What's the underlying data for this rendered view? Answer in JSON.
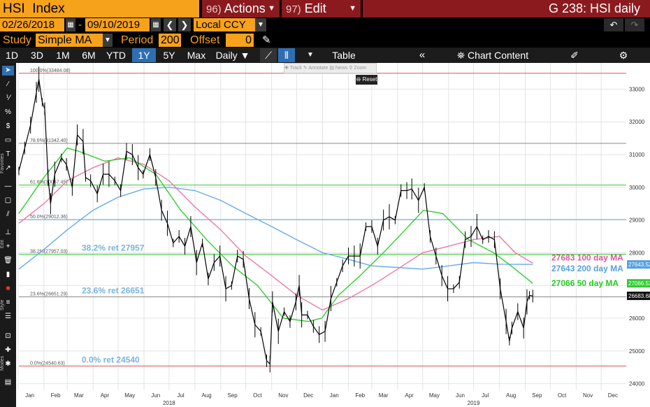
{
  "header": {
    "ticker": "HSI",
    "ticker_type": "Index",
    "actions_num": "96)",
    "actions_label": "Actions",
    "edit_num": "97)",
    "edit_label": "Edit",
    "graph_title": "G 238: HSI daily"
  },
  "dates": {
    "start": "02/26/2018",
    "sep": "-",
    "end": "09/10/2019",
    "currency": "Local CCY"
  },
  "study": {
    "label": "Study",
    "value": "Simple MA",
    "period_label": "Period",
    "period_value": "200",
    "offset_label": "Offset",
    "offset_value": "0"
  },
  "toolbar": {
    "periods": [
      "1D",
      "3D",
      "1M",
      "6M",
      "YTD",
      "1Y",
      "5Y",
      "Max"
    ],
    "active_period": "1Y",
    "frequency": "Daily",
    "table_label": "Table",
    "chart_content_label": "Chart Content"
  },
  "strip": {
    "favorites": "Favorites",
    "edit": "Edit",
    "style": "Style",
    "modes": "Modes"
  },
  "popups": {
    "track": "Track",
    "annotate": "Annotate",
    "news": "News",
    "zoom": "Zoom",
    "reset": "Reset"
  },
  "chart_data": {
    "type": "line",
    "xlim": [
      "2018-01-02",
      "2019-12-31"
    ],
    "ylim": [
      23800,
      33800
    ],
    "y_ticks": [
      24000,
      25000,
      26000,
      27000,
      28000,
      29000,
      30000,
      31000,
      32000,
      33000
    ],
    "x_month_labels": [
      "Jan",
      "Feb",
      "Mar",
      "Apr",
      "May",
      "Jun",
      "Jul",
      "Aug",
      "Sep",
      "Oct",
      "Nov",
      "Dec",
      "Jan",
      "Feb",
      "Mar",
      "Apr",
      "May",
      "Jun",
      "Jul",
      "Aug",
      "Sep",
      "Oct",
      "Nov",
      "Dec"
    ],
    "x_year_labels": [
      {
        "label": "2018",
        "x": "2018-07-01"
      },
      {
        "label": "2019",
        "x": "2019-07-01"
      }
    ],
    "fib_levels": [
      {
        "label": "100.0%(33484.08)",
        "value": 33484.08,
        "color": "#e05050"
      },
      {
        "label": "78.6%(31342.40)",
        "value": 31342.4,
        "color": "#888888"
      },
      {
        "label": "61.8%(30067.45)",
        "value": 30067.45,
        "color": "#33cc33"
      },
      {
        "label": "50.0%(29012.36)",
        "value": 29012.36,
        "color": "#55aadd"
      },
      {
        "label": "38.2%(27957.03)",
        "value": 27957.03,
        "color": "#33cc33"
      },
      {
        "label": "23.6%(26651.29)",
        "value": 26651.29,
        "color": "#888888"
      },
      {
        "label": "0.0%(24540.63)",
        "value": 24540.63,
        "color": "#e05050"
      }
    ],
    "ret_labels": [
      {
        "text": "38.2% ret 27957",
        "value": 27957.03
      },
      {
        "text": "23.6% ret 26651",
        "value": 26651.29
      },
      {
        "text": "0.0% ret 24540",
        "value": 24540.63
      }
    ],
    "series": [
      {
        "name": "HSI",
        "color": "#000000",
        "points": [
          [
            "2018-01-02",
            30500
          ],
          [
            "2018-01-09",
            31200
          ],
          [
            "2018-01-16",
            31900
          ],
          [
            "2018-01-23",
            32900
          ],
          [
            "2018-01-26",
            33300
          ],
          [
            "2018-01-30",
            32600
          ],
          [
            "2018-02-02",
            32400
          ],
          [
            "2018-02-06",
            30300
          ],
          [
            "2018-02-09",
            29500
          ],
          [
            "2018-02-14",
            30400
          ],
          [
            "2018-02-22",
            30900
          ],
          [
            "2018-02-28",
            30700
          ],
          [
            "2018-03-07",
            30000
          ],
          [
            "2018-03-13",
            31600
          ],
          [
            "2018-03-20",
            31400
          ],
          [
            "2018-03-23",
            30300
          ],
          [
            "2018-03-29",
            30200
          ],
          [
            "2018-04-06",
            29800
          ],
          [
            "2018-04-13",
            30400
          ],
          [
            "2018-04-20",
            30400
          ],
          [
            "2018-04-27",
            30200
          ],
          [
            "2018-05-04",
            29900
          ],
          [
            "2018-05-11",
            31100
          ],
          [
            "2018-05-18",
            31000
          ],
          [
            "2018-05-25",
            30600
          ],
          [
            "2018-05-31",
            30400
          ],
          [
            "2018-06-08",
            31000
          ],
          [
            "2018-06-15",
            30300
          ],
          [
            "2018-06-22",
            29300
          ],
          [
            "2018-06-29",
            28900
          ],
          [
            "2018-07-06",
            28300
          ],
          [
            "2018-07-13",
            28500
          ],
          [
            "2018-07-20",
            28200
          ],
          [
            "2018-07-27",
            28800
          ],
          [
            "2018-08-03",
            27700
          ],
          [
            "2018-08-10",
            28300
          ],
          [
            "2018-08-17",
            27200
          ],
          [
            "2018-08-24",
            27700
          ],
          [
            "2018-08-31",
            27900
          ],
          [
            "2018-09-07",
            26900
          ],
          [
            "2018-09-14",
            27000
          ],
          [
            "2018-09-21",
            27900
          ],
          [
            "2018-09-28",
            27800
          ],
          [
            "2018-10-05",
            26600
          ],
          [
            "2018-10-12",
            25800
          ],
          [
            "2018-10-19",
            25600
          ],
          [
            "2018-10-26",
            24700
          ],
          [
            "2018-10-30",
            24600
          ],
          [
            "2018-11-02",
            26500
          ],
          [
            "2018-11-09",
            25600
          ],
          [
            "2018-11-16",
            26200
          ],
          [
            "2018-11-23",
            25900
          ],
          [
            "2018-11-30",
            26500
          ],
          [
            "2018-12-04",
            27000
          ],
          [
            "2018-12-07",
            26100
          ],
          [
            "2018-12-14",
            26100
          ],
          [
            "2018-12-21",
            25750
          ],
          [
            "2018-12-28",
            25500
          ],
          [
            "2019-01-04",
            25600
          ],
          [
            "2019-01-11",
            26600
          ],
          [
            "2019-01-18",
            27100
          ],
          [
            "2019-01-25",
            27600
          ],
          [
            "2019-02-01",
            27900
          ],
          [
            "2019-02-08",
            27900
          ],
          [
            "2019-02-15",
            27900
          ],
          [
            "2019-02-22",
            28800
          ],
          [
            "2019-03-01",
            28800
          ],
          [
            "2019-03-08",
            28200
          ],
          [
            "2019-03-15",
            29000
          ],
          [
            "2019-03-22",
            29100
          ],
          [
            "2019-03-29",
            29000
          ],
          [
            "2019-04-05",
            29900
          ],
          [
            "2019-04-12",
            29900
          ],
          [
            "2019-04-18",
            29950
          ],
          [
            "2019-04-26",
            29600
          ],
          [
            "2019-05-03",
            30000
          ],
          [
            "2019-05-10",
            28500
          ],
          [
            "2019-05-17",
            27900
          ],
          [
            "2019-05-24",
            27300
          ],
          [
            "2019-05-31",
            26900
          ],
          [
            "2019-06-07",
            26900
          ],
          [
            "2019-06-14",
            27100
          ],
          [
            "2019-06-21",
            28400
          ],
          [
            "2019-06-28",
            28500
          ],
          [
            "2019-07-05",
            28800
          ],
          [
            "2019-07-12",
            28400
          ],
          [
            "2019-07-19",
            28500
          ],
          [
            "2019-07-26",
            28400
          ],
          [
            "2019-08-02",
            26900
          ],
          [
            "2019-08-09",
            25900
          ],
          [
            "2019-08-13",
            25300
          ],
          [
            "2019-08-16",
            25700
          ],
          [
            "2019-08-23",
            26200
          ],
          [
            "2019-08-30",
            25700
          ],
          [
            "2019-09-03",
            26500
          ],
          [
            "2019-09-06",
            26700
          ],
          [
            "2019-09-10",
            26680
          ]
        ]
      },
      {
        "name": "50 day MA",
        "color": "#33cc33",
        "points": [
          [
            "2018-01-02",
            29200
          ],
          [
            "2018-02-01",
            30300
          ],
          [
            "2018-03-01",
            31200
          ],
          [
            "2018-03-15",
            31100
          ],
          [
            "2018-04-15",
            30800
          ],
          [
            "2018-05-15",
            30900
          ],
          [
            "2018-06-15",
            30400
          ],
          [
            "2018-07-15",
            29300
          ],
          [
            "2018-08-15",
            28400
          ],
          [
            "2018-09-15",
            27600
          ],
          [
            "2018-10-15",
            27000
          ],
          [
            "2018-11-15",
            26000
          ],
          [
            "2018-12-15",
            25900
          ],
          [
            "2018-12-31",
            26000
          ],
          [
            "2019-01-20",
            26700
          ],
          [
            "2019-02-15",
            27300
          ],
          [
            "2019-03-15",
            28000
          ],
          [
            "2019-04-10",
            28700
          ],
          [
            "2019-05-02",
            29300
          ],
          [
            "2019-05-25",
            29200
          ],
          [
            "2019-06-25",
            28400
          ],
          [
            "2019-07-25",
            28000
          ],
          [
            "2019-08-15",
            27600
          ],
          [
            "2019-09-10",
            27066
          ]
        ]
      },
      {
        "name": "100 day MA",
        "color": "#ee77aa",
        "points": [
          [
            "2018-01-02",
            28900
          ],
          [
            "2018-02-01",
            29500
          ],
          [
            "2018-03-01",
            30200
          ],
          [
            "2018-04-01",
            30600
          ],
          [
            "2018-05-01",
            30900
          ],
          [
            "2018-06-01",
            30700
          ],
          [
            "2018-07-01",
            30200
          ],
          [
            "2018-08-01",
            29400
          ],
          [
            "2018-09-01",
            28700
          ],
          [
            "2018-10-01",
            27900
          ],
          [
            "2018-11-01",
            27300
          ],
          [
            "2018-12-01",
            26700
          ],
          [
            "2019-01-01",
            26250
          ],
          [
            "2019-02-01",
            26600
          ],
          [
            "2019-03-01",
            27000
          ],
          [
            "2019-04-01",
            27500
          ],
          [
            "2019-05-01",
            28000
          ],
          [
            "2019-06-01",
            28200
          ],
          [
            "2019-07-01",
            28400
          ],
          [
            "2019-08-01",
            28500
          ],
          [
            "2019-08-20",
            28000
          ],
          [
            "2019-09-10",
            27683
          ]
        ]
      },
      {
        "name": "200 day MA",
        "color": "#66aaee",
        "points": [
          [
            "2018-01-02",
            27500
          ],
          [
            "2018-02-01",
            28100
          ],
          [
            "2018-03-01",
            28700
          ],
          [
            "2018-04-01",
            29300
          ],
          [
            "2018-05-01",
            29700
          ],
          [
            "2018-06-01",
            29950
          ],
          [
            "2018-07-01",
            30000
          ],
          [
            "2018-08-01",
            29900
          ],
          [
            "2018-09-01",
            29600
          ],
          [
            "2018-10-01",
            29200
          ],
          [
            "2018-11-01",
            28800
          ],
          [
            "2018-12-01",
            28400
          ],
          [
            "2019-01-01",
            28000
          ],
          [
            "2019-02-01",
            27800
          ],
          [
            "2019-03-01",
            27600
          ],
          [
            "2019-04-01",
            27550
          ],
          [
            "2019-05-01",
            27500
          ],
          [
            "2019-06-01",
            27600
          ],
          [
            "2019-07-01",
            27700
          ],
          [
            "2019-08-01",
            27650
          ],
          [
            "2019-09-10",
            27643
          ]
        ]
      }
    ],
    "ma_labels": [
      {
        "text": "27683 100 day MA",
        "value": 27683,
        "color": "#e0559a"
      },
      {
        "text": "27643 200 day MA",
        "value": 27643,
        "color": "#55a0e0"
      },
      {
        "text": "27066 50 day MA",
        "value": 27066,
        "color": "#22cc22"
      }
    ],
    "last_tags": [
      {
        "text": "27643.52",
        "value": 27643.52,
        "bg": "#55a0e0"
      },
      {
        "text": "27066.53",
        "value": 27066.53,
        "bg": "#33cc33"
      },
      {
        "text": "26683.68",
        "value": 26683.68,
        "bg": "#111111"
      }
    ]
  }
}
